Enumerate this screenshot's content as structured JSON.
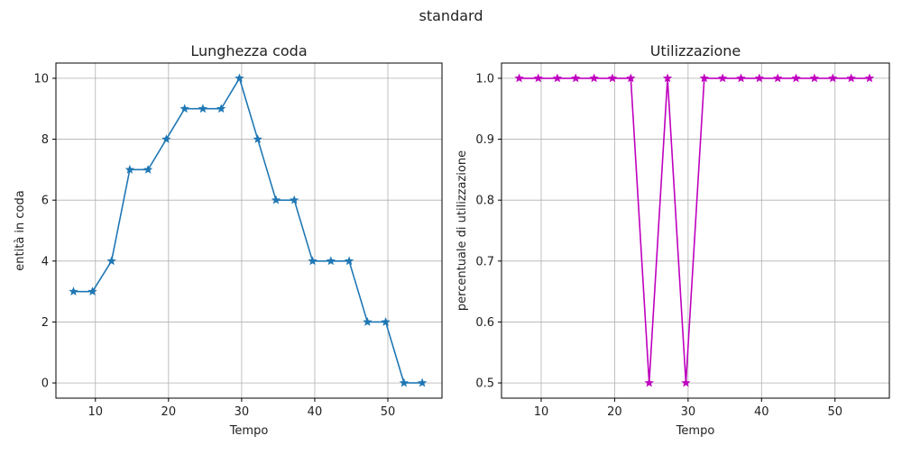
{
  "suptitle": "standard",
  "chart_data": [
    {
      "type": "line",
      "title": "Lunghezza coda",
      "xlabel": "Tempo",
      "ylabel": "entità in coda",
      "xlim": [
        4.6,
        57.4
      ],
      "ylim": [
        -0.5,
        10.5
      ],
      "xticks": [
        10,
        20,
        30,
        40,
        50
      ],
      "yticks": [
        0,
        2,
        4,
        6,
        8,
        10
      ],
      "grid": true,
      "color": "#1f77b4",
      "marker": "star",
      "x": [
        7.0,
        9.6,
        12.2,
        14.7,
        17.2,
        19.7,
        22.2,
        24.7,
        27.2,
        29.7,
        32.2,
        34.7,
        37.2,
        39.7,
        42.2,
        44.7,
        47.2,
        49.7,
        52.2,
        54.7
      ],
      "y": [
        3,
        3,
        4,
        7,
        7,
        8,
        9,
        9,
        9,
        10,
        8,
        6,
        6,
        4,
        4,
        4,
        2,
        2,
        0,
        0
      ]
    },
    {
      "type": "line",
      "title": "Utilizzazione",
      "xlabel": "Tempo",
      "ylabel": "percentuale di utilizzazione",
      "xlim": [
        4.6,
        57.4
      ],
      "ylim": [
        0.475,
        1.025
      ],
      "xticks": [
        10,
        20,
        30,
        40,
        50
      ],
      "yticks": [
        0.5,
        0.6,
        0.7,
        0.8,
        0.9,
        1.0
      ],
      "grid": true,
      "color": "#bf00bf",
      "marker": "star",
      "x": [
        7.0,
        9.6,
        12.2,
        14.7,
        17.2,
        19.7,
        22.2,
        24.7,
        27.2,
        29.7,
        32.2,
        34.7,
        37.2,
        39.7,
        42.2,
        44.7,
        47.2,
        49.7,
        52.2,
        54.7
      ],
      "y": [
        1.0,
        1.0,
        1.0,
        1.0,
        1.0,
        1.0,
        1.0,
        0.5,
        1.0,
        0.5,
        1.0,
        1.0,
        1.0,
        1.0,
        1.0,
        1.0,
        1.0,
        1.0,
        1.0,
        1.0
      ]
    }
  ]
}
